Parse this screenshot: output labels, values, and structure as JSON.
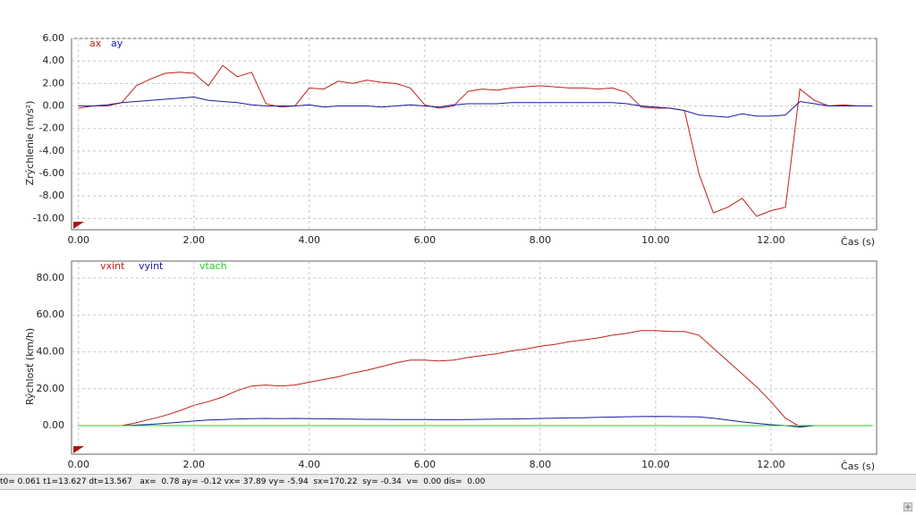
{
  "chart_data": [
    {
      "type": "line",
      "ylabel": "Zrýchlenie (m/s²)",
      "xlabel": "Čas (s)",
      "grid": true,
      "x": [
        0,
        0.25,
        0.5,
        0.75,
        1,
        1.25,
        1.5,
        1.75,
        2,
        2.25,
        2.5,
        2.75,
        3,
        3.25,
        3.5,
        3.75,
        4,
        4.25,
        4.5,
        4.75,
        5,
        5.25,
        5.5,
        5.75,
        6,
        6.25,
        6.5,
        6.75,
        7,
        7.25,
        7.5,
        7.75,
        8,
        8.25,
        8.5,
        8.75,
        9,
        9.25,
        9.5,
        9.75,
        10,
        10.25,
        10.5,
        10.75,
        11,
        11.25,
        11.5,
        11.75,
        12,
        12.25,
        12.5,
        12.75,
        13,
        13.25,
        13.5,
        13.75
      ],
      "xlim": [
        -0.12,
        13.83
      ],
      "xticks": [
        {
          "value": 0,
          "label": "0.00"
        },
        {
          "value": 2,
          "label": "2.00"
        },
        {
          "value": 4,
          "label": "4.00"
        },
        {
          "value": 6,
          "label": "6.00"
        },
        {
          "value": 8,
          "label": "8.00"
        },
        {
          "value": 10,
          "label": "10.00"
        },
        {
          "value": 12,
          "label": "12.00"
        }
      ],
      "ylim": [
        -11,
        6
      ],
      "yticks": [
        {
          "value": 6,
          "label": "6.00"
        },
        {
          "value": 4,
          "label": "4.00"
        },
        {
          "value": 2,
          "label": "2.00"
        },
        {
          "value": 0,
          "label": "0.00"
        },
        {
          "value": -2,
          "label": "-2.00"
        },
        {
          "value": -4,
          "label": "-4.00"
        },
        {
          "value": -6,
          "label": "-6.00"
        },
        {
          "value": -8,
          "label": "-8.00"
        },
        {
          "value": -10,
          "label": "-10.00"
        }
      ],
      "series": [
        {
          "name": "ax",
          "color": "#c0201a",
          "values": [
            -0.2,
            0,
            0,
            0.3,
            1.8,
            2.4,
            2.9,
            3.0,
            2.9,
            1.8,
            3.6,
            2.6,
            3.0,
            0.2,
            -0.1,
            0.0,
            1.6,
            1.5,
            2.2,
            2.0,
            2.3,
            2.1,
            2.0,
            1.6,
            0.1,
            -0.2,
            0.0,
            1.3,
            1.5,
            1.4,
            1.6,
            1.7,
            1.8,
            1.7,
            1.6,
            1.6,
            1.5,
            1.6,
            1.2,
            -0.1,
            -0.2,
            -0.2,
            -0.4,
            -6.0,
            -9.5,
            -9.0,
            -8.2,
            -9.8,
            -9.3,
            -9.0,
            1.5,
            0.5,
            0.0,
            0.1,
            0.0,
            0.0
          ]
        },
        {
          "name": "ay",
          "color": "#1a1aa0",
          "values": [
            0,
            0,
            0.1,
            0.3,
            0.4,
            0.5,
            0.6,
            0.7,
            0.8,
            0.5,
            0.4,
            0.3,
            0.1,
            0,
            0,
            0,
            0.1,
            -0.1,
            0,
            0,
            0,
            -0.1,
            0,
            0.1,
            0,
            -0.1,
            0.1,
            0.2,
            0.2,
            0.2,
            0.3,
            0.3,
            0.3,
            0.3,
            0.3,
            0.3,
            0.3,
            0.3,
            0.2,
            0,
            -0.1,
            -0.2,
            -0.4,
            -0.8,
            -0.9,
            -1,
            -0.7,
            -0.9,
            -0.9,
            -0.8,
            0.4,
            0.2,
            0,
            0,
            0,
            0
          ]
        }
      ]
    },
    {
      "type": "line",
      "ylabel": "Rýchlosť (km/h)",
      "xlabel": "Čas (s)",
      "grid": true,
      "x": [
        0,
        0.25,
        0.5,
        0.75,
        1,
        1.25,
        1.5,
        1.75,
        2,
        2.25,
        2.5,
        2.75,
        3,
        3.25,
        3.5,
        3.75,
        4,
        4.25,
        4.5,
        4.75,
        5,
        5.25,
        5.5,
        5.75,
        6,
        6.25,
        6.5,
        6.75,
        7,
        7.25,
        7.5,
        7.75,
        8,
        8.25,
        8.5,
        8.75,
        9,
        9.25,
        9.5,
        9.75,
        10,
        10.25,
        10.5,
        10.75,
        11,
        11.25,
        11.5,
        11.75,
        12,
        12.25,
        12.5,
        12.75,
        13,
        13.25,
        13.5,
        13.75
      ],
      "xlim": [
        -0.12,
        13.83
      ],
      "xticks": [
        {
          "value": 0,
          "label": "0.00"
        },
        {
          "value": 2,
          "label": "2.00"
        },
        {
          "value": 4,
          "label": "4.00"
        },
        {
          "value": 6,
          "label": "6.00"
        },
        {
          "value": 8,
          "label": "8.00"
        },
        {
          "value": 10,
          "label": "10.00"
        },
        {
          "value": 12,
          "label": "12.00"
        }
      ],
      "ylim": [
        -15.5,
        89.2
      ],
      "yticks": [
        {
          "value": 80,
          "label": "80.00"
        },
        {
          "value": 60,
          "label": "60.00"
        },
        {
          "value": 40,
          "label": "40.00"
        },
        {
          "value": 20,
          "label": "20.00"
        },
        {
          "value": 0,
          "label": "0.00"
        }
      ],
      "series": [
        {
          "name": "vxint",
          "color": "#c0201a",
          "values": [
            0,
            0,
            0,
            0,
            1.5,
            3.5,
            5.5,
            8,
            11,
            13,
            15.5,
            19,
            21.5,
            22,
            21.5,
            22,
            23.5,
            25,
            26.5,
            28.5,
            30,
            32,
            34,
            35.5,
            35.5,
            35,
            35.5,
            37,
            38,
            39,
            40.5,
            41.5,
            43,
            44,
            45.5,
            46.5,
            47.5,
            49,
            50,
            51.5,
            51.5,
            51,
            51,
            49,
            42,
            35,
            28,
            21,
            13,
            4,
            -0.5,
            0,
            0,
            0,
            0,
            0
          ]
        },
        {
          "name": "vyint",
          "color": "#1a1aa0",
          "values": [
            0,
            0,
            0,
            0,
            0.3,
            0.7,
            1.2,
            1.8,
            2.5,
            3,
            3.3,
            3.6,
            3.8,
            3.9,
            3.8,
            3.9,
            3.8,
            3.7,
            3.6,
            3.5,
            3.4,
            3.4,
            3.3,
            3.3,
            3.3,
            3.2,
            3.2,
            3.3,
            3.4,
            3.5,
            3.6,
            3.7,
            3.9,
            4,
            4.2,
            4.3,
            4.5,
            4.6,
            4.8,
            4.9,
            5,
            4.9,
            4.8,
            4.7,
            4,
            3,
            2,
            1.2,
            0.5,
            0,
            -0.8,
            0,
            0,
            0,
            0,
            0
          ]
        },
        {
          "name": "vtach",
          "color": "#22d022",
          "values": [
            0,
            0,
            0,
            0,
            0,
            0,
            0,
            0,
            0,
            0,
            0,
            0,
            0,
            0,
            0,
            0,
            0,
            0,
            0,
            0,
            0,
            0,
            0,
            0,
            0,
            0,
            0,
            0,
            0,
            0,
            0,
            0,
            0,
            0,
            0,
            0,
            0,
            0,
            0,
            0,
            0,
            0,
            0,
            0,
            0,
            0,
            0,
            0,
            0,
            0,
            0,
            0,
            0,
            0,
            0,
            0
          ]
        }
      ]
    }
  ],
  "status_bar": "t0= 0.061 t1=13.627 dt=13.567   ax=  0.78 ay= -0.12 vx= 37.89 vy= -5.94  sx=170.22  sy= -0.34  v=  0.00 dis=  0.00"
}
